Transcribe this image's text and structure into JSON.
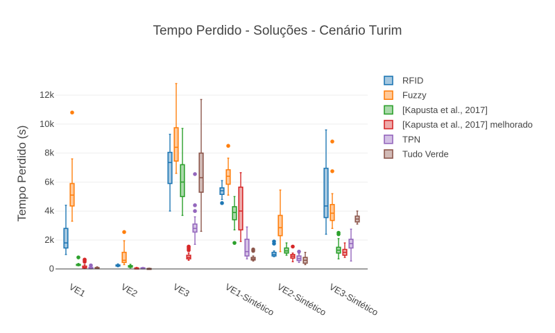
{
  "chart_data": {
    "type": "box",
    "title": "Tempo Perdido - Soluções - Cenário Turim",
    "xlabel": "",
    "ylabel": "Tempo Perdido (s)",
    "ylim": [
      -300,
      13300
    ],
    "yticks": [
      0,
      2000,
      4000,
      6000,
      8000,
      10000,
      12000
    ],
    "ytick_labels": [
      "0",
      "2k",
      "4k",
      "6k",
      "8k",
      "10k",
      "12k"
    ],
    "grid": true,
    "legend_position": "top-right",
    "categories": [
      "VE1",
      "VE2",
      "VE3",
      "VE1-Sintético",
      "VE2-Sintético",
      "VE3-Sintético"
    ],
    "series": [
      {
        "name": "RFID",
        "color": "#1f77b4",
        "fill": "#a6c8e0",
        "boxes": [
          {
            "min": 1000,
            "q1": 1450,
            "median": 1800,
            "q3": 2800,
            "max": 4400,
            "outliers": []
          },
          {
            "min": 150,
            "q1": 200,
            "median": 230,
            "q3": 280,
            "max": 350,
            "outliers": []
          },
          {
            "min": 4000,
            "q1": 5900,
            "median": 7350,
            "q3": 8050,
            "max": 9300,
            "outliers": []
          },
          {
            "min": 4800,
            "q1": 5150,
            "median": 5400,
            "q3": 5600,
            "max": 6100,
            "outliers": [
              4550
            ]
          },
          {
            "min": 850,
            "q1": 900,
            "median": 1000,
            "q3": 1150,
            "max": 1250,
            "outliers": [
              1750,
              1900
            ]
          },
          {
            "min": 2400,
            "q1": 3550,
            "median": 4350,
            "q3": 6950,
            "max": 9600,
            "outliers": []
          }
        ]
      },
      {
        "name": "Fuzzy",
        "color": "#ff7f0e",
        "fill": "#ffc999",
        "boxes": [
          {
            "min": 3300,
            "q1": 4350,
            "median": 5100,
            "q3": 5900,
            "max": 7600,
            "outliers": [
              10800
            ]
          },
          {
            "min": 300,
            "q1": 450,
            "median": 600,
            "q3": 1150,
            "max": 1950,
            "outliers": [
              2550
            ]
          },
          {
            "min": 6600,
            "q1": 7450,
            "median": 8400,
            "q3": 9750,
            "max": 12800,
            "outliers": []
          },
          {
            "min": 5100,
            "q1": 5850,
            "median": 6400,
            "q3": 6850,
            "max": 7650,
            "outliers": [
              8500
            ]
          },
          {
            "min": 1200,
            "q1": 2300,
            "median": 2850,
            "q3": 3700,
            "max": 5450,
            "outliers": []
          },
          {
            "min": 2800,
            "q1": 3350,
            "median": 3850,
            "q3": 4450,
            "max": 5200,
            "outliers": [
              6750,
              8800
            ]
          }
        ]
      },
      {
        "name": "[Kapusta et al., 2017]",
        "color": "#2ca02c",
        "fill": "#abd9ab",
        "boxes": [
          {
            "min": 220,
            "q1": 250,
            "median": 280,
            "q3": 320,
            "max": 380,
            "outliers": [
              800
            ]
          },
          {
            "min": 80,
            "q1": 130,
            "median": 180,
            "q3": 230,
            "max": 320,
            "outliers": []
          },
          {
            "min": 3700,
            "q1": 5000,
            "median": 6000,
            "q3": 7200,
            "max": 9700,
            "outliers": []
          },
          {
            "min": 2700,
            "q1": 3400,
            "median": 3900,
            "q3": 4300,
            "max": 5000,
            "outliers": [
              1800
            ]
          },
          {
            "min": 950,
            "q1": 1100,
            "median": 1250,
            "q3": 1450,
            "max": 1800,
            "outliers": []
          },
          {
            "min": 700,
            "q1": 1100,
            "median": 1300,
            "q3": 1500,
            "max": 2100,
            "outliers": [
              2400,
              2500
            ]
          }
        ]
      },
      {
        "name": "[Kapusta et al., 2017] melhorado",
        "color": "#d62728",
        "fill": "#eeaaaa",
        "boxes": [
          {
            "min": 40,
            "q1": 70,
            "median": 110,
            "q3": 200,
            "max": 300,
            "outliers": [
              500,
              600,
              650
            ]
          },
          {
            "min": 10,
            "q1": 20,
            "median": 40,
            "q3": 70,
            "max": 110,
            "outliers": []
          },
          {
            "min": 600,
            "q1": 700,
            "median": 800,
            "q3": 950,
            "max": 1100,
            "outliers": [
              1300,
              1400,
              1500,
              1550
            ]
          },
          {
            "min": 1900,
            "q1": 2700,
            "median": 4000,
            "q3": 5650,
            "max": 6650,
            "outliers": []
          },
          {
            "min": 500,
            "q1": 750,
            "median": 880,
            "q3": 1000,
            "max": 1100,
            "outliers": [
              1550
            ]
          },
          {
            "min": 800,
            "q1": 950,
            "median": 1150,
            "q3": 1350,
            "max": 1800,
            "outliers": []
          }
        ]
      },
      {
        "name": "TPN",
        "color": "#9467bd",
        "fill": "#d4c1e5",
        "boxes": [
          {
            "min": 10,
            "q1": 30,
            "median": 60,
            "q3": 110,
            "max": 170,
            "outliers": [
              250
            ]
          },
          {
            "min": 5,
            "q1": 20,
            "median": 50,
            "q3": 80,
            "max": 110,
            "outliers": []
          },
          {
            "min": 1700,
            "q1": 2550,
            "median": 2800,
            "q3": 3100,
            "max": 3600,
            "outliers": [
              4000,
              4400,
              6550
            ]
          },
          {
            "min": 700,
            "q1": 900,
            "median": 1200,
            "q3": 2050,
            "max": 2900,
            "outliers": []
          },
          {
            "min": 450,
            "q1": 580,
            "median": 720,
            "q3": 900,
            "max": 1050,
            "outliers": [
              1200
            ]
          },
          {
            "min": 550,
            "q1": 1450,
            "median": 1750,
            "q3": 2050,
            "max": 2750,
            "outliers": []
          }
        ]
      },
      {
        "name": "Tudo Verde",
        "color": "#8c564b",
        "fill": "#d1bab6",
        "boxes": [
          {
            "min": 20,
            "q1": 40,
            "median": 60,
            "q3": 100,
            "max": 150,
            "outliers": []
          },
          {
            "min": 5,
            "q1": 10,
            "median": 20,
            "q3": 40,
            "max": 60,
            "outliers": []
          },
          {
            "min": 2600,
            "q1": 5300,
            "median": 6300,
            "q3": 8000,
            "max": 11700,
            "outliers": []
          },
          {
            "min": 550,
            "q1": 620,
            "median": 700,
            "q3": 800,
            "max": 900,
            "outliers": [
              1250,
              1350
            ]
          },
          {
            "min": 300,
            "q1": 400,
            "median": 600,
            "q3": 800,
            "max": 1150,
            "outliers": []
          },
          {
            "min": 3100,
            "q1": 3250,
            "median": 3450,
            "q3": 3650,
            "max": 4000,
            "outliers": []
          }
        ]
      }
    ]
  }
}
